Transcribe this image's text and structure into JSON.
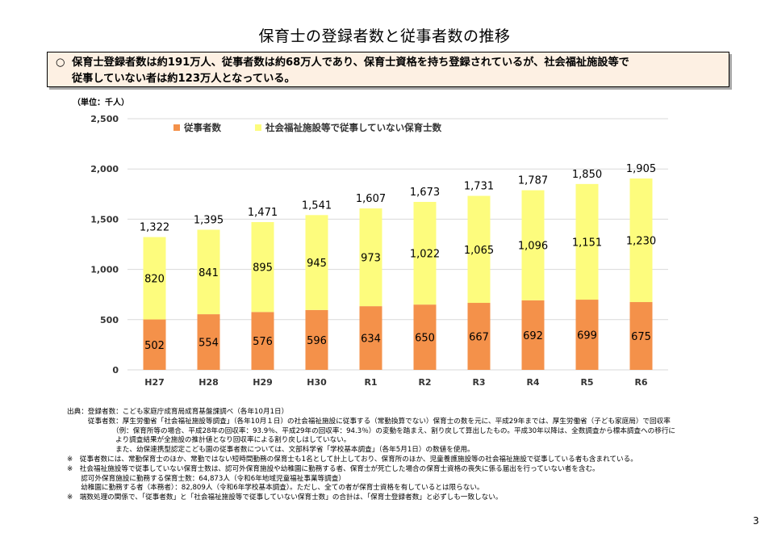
{
  "page": {
    "title": "保育士の登録者数と従事者数の推移",
    "summary_bullet": "○",
    "summary_line1": "保育士登録者数は約191万人、従事者数は約68万人であり、保育士資格を持ち登録されているが、社会福祉施設等で",
    "summary_line2": "従事していない者は約123万人となっている。",
    "unit_label": "（単位：千人）",
    "page_number": "3"
  },
  "colors": {
    "employed": "#f4914a",
    "not_employed": "#fdfc7d",
    "grid": "#d9d9d9"
  },
  "chart_data": {
    "type": "bar",
    "stacked": true,
    "categories": [
      "H27",
      "H28",
      "H29",
      "H30",
      "R1",
      "R2",
      "R3",
      "R4",
      "R5",
      "R6"
    ],
    "series": [
      {
        "name": "従事者数",
        "values": [
          502,
          554,
          576,
          596,
          634,
          650,
          667,
          692,
          699,
          675
        ]
      },
      {
        "name": "社会福祉施設等で従事していない保育士数",
        "values": [
          820,
          841,
          895,
          945,
          973,
          1022,
          1065,
          1096,
          1151,
          1230
        ]
      }
    ],
    "totals": [
      1322,
      1395,
      1471,
      1541,
      1607,
      1673,
      1731,
      1787,
      1850,
      1905
    ],
    "ylim": [
      0,
      2500
    ],
    "yticks": [
      0,
      500,
      1000,
      1500,
      2000,
      2500
    ],
    "ytick_labels": [
      "0",
      "500",
      "1,000",
      "1,500",
      "2,000",
      "2,500"
    ],
    "grid": true,
    "legend_position": "top-left"
  },
  "notes": [
    "出典：登録者数：こども家庭庁成育局成育基盤課調べ（各年10月1日）",
    "　　　従事者数：厚生労働省「社会福祉施設等調査」（各年10月１日）の社会福祉施設に従事する（常勤換算でない）保育士の数を元に、平成29年までは、厚生労働省（子ども家庭局）で回収率",
    "　　　　　　　（例：保育所等の場合、平成28年の回収率：93.9％、平成29年の回収率：94.3％）の変動を踏まえ、割り戻して算出したもの。平成30年以降は、全数調査から標本調査への移行に",
    "　　　　　　　より調査結果が全施設の推計値となり回収率による割り戻しはしていない。",
    "　　　　　　　また、幼保連携型認定こども園の従事者数については、文部科学省「学校基本調査」（各年5月1日）の数値を使用。",
    "※　従事者数には、常勤保育士のほか、常勤ではない短時間勤務の保育士も1名として計上しており、保育所のほか、児童養護施設等の社会福祉施設で従事している者も含まれている。",
    "※　社会福祉施設等で従事していない保育士数は、認可外保育施設や幼稚園に勤務する者、保育士が死亡した場合の保育士資格の喪失に係る届出を行っていない者を含む。",
    "　　認可外保育施設に勤務する保育士数：64,873人（令和6年地域児童福祉事業等調査）",
    "　　幼稚園に勤務する者（本務者）：82,809人（令和6年学校基本調査）。ただし、全ての者が保育士資格を有しているとは限らない。",
    "※　端数処理の関係で、「従事者数」と「社会福祉施設等で従事していない保育士数」の合計は、「保育士登録者数」と必ずしも一致しない。"
  ]
}
